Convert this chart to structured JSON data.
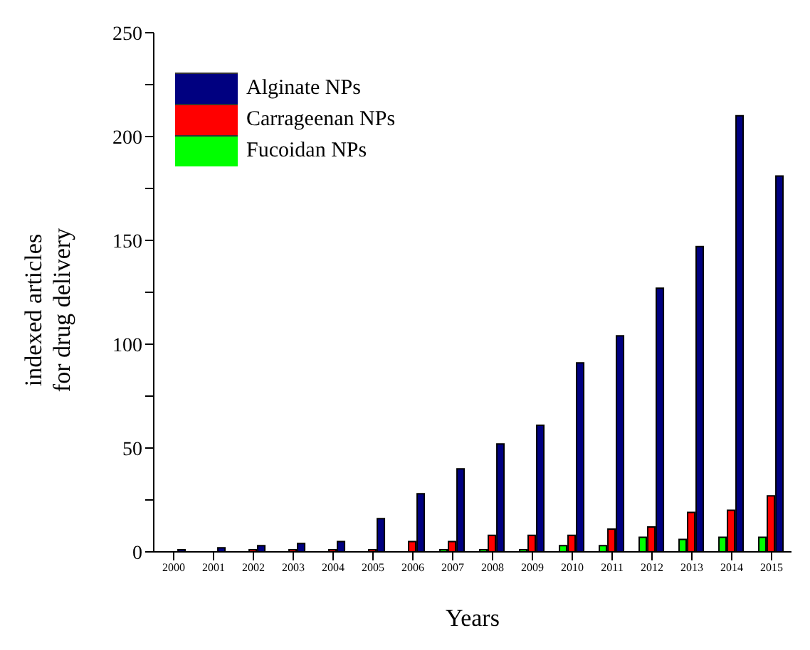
{
  "chart_data": {
    "type": "bar",
    "xlabel": "Years",
    "ylabel": "indexed articles\nfor drug delivery",
    "categories": [
      "2000",
      "2001",
      "2002",
      "2003",
      "2004",
      "2005",
      "2006",
      "2007",
      "2008",
      "2009",
      "2010",
      "2011",
      "2012",
      "2013",
      "2014",
      "2015"
    ],
    "series": [
      {
        "name": "Fucoidan NPs",
        "color": "#00ff00",
        "values": [
          0,
          0,
          0,
          0,
          0,
          0,
          0,
          1,
          1,
          1,
          3,
          3,
          7,
          6,
          7,
          7
        ]
      },
      {
        "name": "Carrageenan NPs",
        "color": "#ff0000",
        "values": [
          0,
          0,
          1,
          1,
          1,
          1,
          5,
          5,
          8,
          8,
          8,
          11,
          12,
          19,
          20,
          27
        ]
      },
      {
        "name": "Alginate NPs",
        "color": "#000080",
        "values": [
          1,
          2,
          3,
          4,
          5,
          16,
          28,
          40,
          52,
          61,
          91,
          104,
          127,
          147,
          210,
          181
        ]
      }
    ],
    "ylim": [
      0,
      250
    ],
    "yticks": [
      0,
      {
        "value": 25,
        "label": null
      },
      50,
      {
        "value": 75,
        "label": null
      },
      100,
      {
        "value": 125,
        "label": null
      },
      150,
      {
        "value": 175,
        "label": null
      },
      200,
      {
        "value": 225,
        "label": null
      },
      250
    ],
    "grid": false,
    "legend": "top left"
  }
}
